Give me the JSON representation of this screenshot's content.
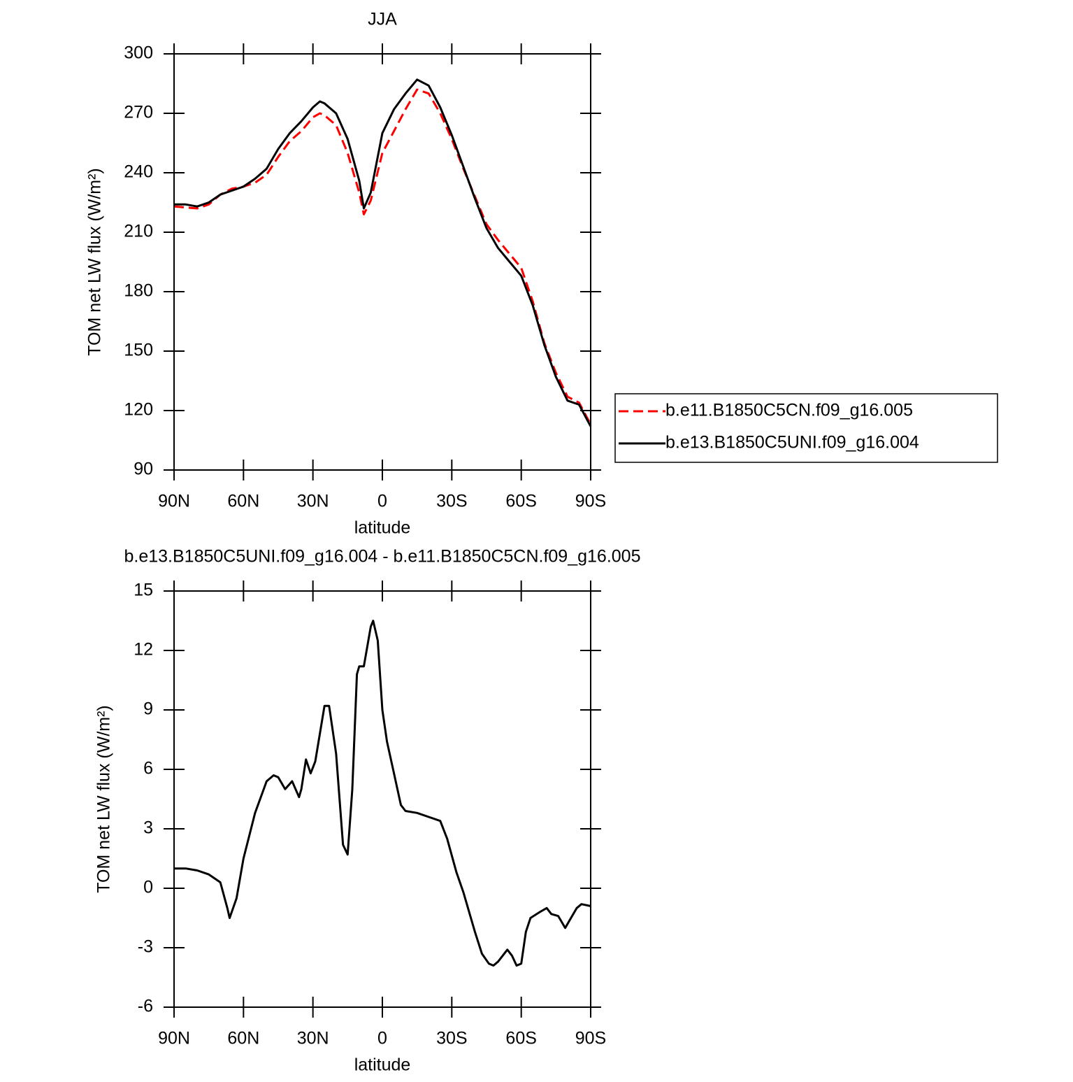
{
  "chart_data": [
    {
      "type": "line",
      "title": "JJA",
      "xlabel": "latitude",
      "ylabel": "TOM net LW flux (W/m²)",
      "xlim": [
        90,
        -90
      ],
      "xticks": [
        {
          "value": 90,
          "label": "90N"
        },
        {
          "value": 60,
          "label": "60N"
        },
        {
          "value": 30,
          "label": "30N"
        },
        0,
        {
          "value": -30,
          "label": "30S"
        },
        {
          "value": -60,
          "label": "60S"
        },
        {
          "value": -90,
          "label": "90S"
        }
      ],
      "ylim": [
        90,
        300
      ],
      "yticks": [
        90,
        120,
        150,
        180,
        210,
        240,
        270,
        300
      ],
      "legend": "right",
      "x": [
        90,
        85,
        80,
        75,
        70,
        65,
        60,
        55,
        50,
        45,
        40,
        35,
        30,
        27,
        25,
        20,
        15,
        10,
        8,
        5,
        0,
        -5,
        -10,
        -15,
        -20,
        -25,
        -30,
        -35,
        -40,
        -45,
        -50,
        -55,
        -60,
        -65,
        -70,
        -75,
        -80,
        -85,
        -90
      ],
      "series": [
        {
          "name": "b.e11.B1850C5CN.f09_g16.005",
          "color": "#ff0000",
          "dash": true,
          "values": [
            223,
            222.5,
            222,
            224,
            229,
            232,
            233,
            235,
            239,
            248,
            256,
            261,
            268,
            270,
            269,
            264,
            250,
            230,
            219,
            226,
            250,
            261,
            272,
            282,
            280,
            270,
            257,
            242,
            228,
            214,
            206,
            199,
            192,
            175,
            154,
            139,
            127,
            124,
            113
          ]
        },
        {
          "name": "b.e13.B1850C5UNI.f09_g16.004",
          "color": "#000000",
          "dash": false,
          "values": [
            224,
            224,
            223,
            225,
            229,
            231,
            233,
            237,
            242,
            252,
            260,
            266,
            273,
            276,
            275,
            270,
            257,
            236,
            222,
            230,
            260,
            272,
            280,
            287,
            284,
            273,
            259,
            243,
            227,
            212,
            202,
            195,
            188,
            173,
            153,
            137,
            125,
            123,
            112
          ]
        }
      ]
    },
    {
      "type": "line",
      "title": "b.e13.B1850C5UNI.f09_g16.004 - b.e11.B1850C5CN.f09_g16.005",
      "xlabel": "latitude",
      "ylabel": "TOM net LW flux (W/m²)",
      "xlim": [
        90,
        -90
      ],
      "xticks": [
        {
          "value": 90,
          "label": "90N"
        },
        {
          "value": 60,
          "label": "60N"
        },
        {
          "value": 30,
          "label": "30N"
        },
        0,
        {
          "value": -30,
          "label": "30S"
        },
        {
          "value": -60,
          "label": "60S"
        },
        {
          "value": -90,
          "label": "90S"
        }
      ],
      "ylim": [
        -6,
        15
      ],
      "yticks": [
        -6,
        -3,
        0,
        3,
        6,
        9,
        12,
        15
      ],
      "x": [
        90,
        85,
        80,
        75,
        70,
        67,
        66,
        63,
        60,
        55,
        50,
        47,
        45,
        42,
        39,
        36,
        35,
        33,
        31,
        29,
        25,
        23,
        20,
        17,
        15,
        13,
        11,
        10,
        8,
        5,
        4,
        2,
        0,
        -2,
        -5,
        -8,
        -10,
        -15,
        -20,
        -25,
        -28,
        -32,
        -35,
        -40,
        -43,
        -46,
        -48,
        -50,
        -54,
        -56,
        -58,
        -60,
        -62,
        -64,
        -68,
        -71,
        -73,
        -76,
        -79,
        -81,
        -84,
        -86,
        -90
      ],
      "series": [
        {
          "name": null,
          "color": "#000000",
          "dash": false,
          "values": [
            1,
            1,
            0.9,
            0.7,
            0.3,
            -1,
            -1.5,
            -0.5,
            1.5,
            3.8,
            5.4,
            5.7,
            5.6,
            5.0,
            5.4,
            4.6,
            5.0,
            6.5,
            5.8,
            6.4,
            9.2,
            9.2,
            6.8,
            2.2,
            1.7,
            5,
            10.8,
            11.2,
            11.2,
            13.2,
            13.5,
            12.5,
            9,
            7.4,
            5.8,
            4.2,
            3.9,
            3.8,
            3.6,
            3.4,
            2.5,
            0.8,
            -0.2,
            -2.2,
            -3.3,
            -3.8,
            -3.9,
            -3.7,
            -3.1,
            -3.4,
            -3.9,
            -3.8,
            -2.2,
            -1.5,
            -1.2,
            -1.0,
            -1.3,
            -1.4,
            -2.0,
            -1.6,
            -1.0,
            -0.8,
            -0.9
          ]
        }
      ]
    }
  ]
}
